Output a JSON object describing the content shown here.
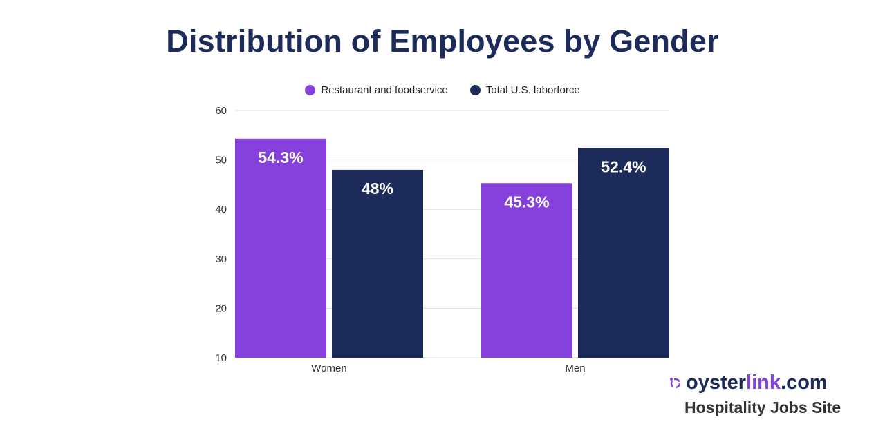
{
  "colors": {
    "title": "#1c2b5a",
    "series_a": "#8640db",
    "series_b": "#1c2b5a",
    "grid": "#e0e0e0",
    "brand_accent": "#8640db"
  },
  "chart_data": {
    "type": "bar",
    "title": "Distribution of Employees by Gender",
    "categories": [
      "Women",
      "Men"
    ],
    "series": [
      {
        "name": "Restaurant and foodservice",
        "values": [
          54.3,
          45.3
        ],
        "labels": [
          "54.3%",
          "45.3%"
        ],
        "color": "#8640db"
      },
      {
        "name": "Total U.S. laborforce",
        "values": [
          48,
          52.4
        ],
        "labels": [
          "48%",
          "52.4%"
        ],
        "color": "#1c2b5a"
      }
    ],
    "ylim": [
      10,
      60
    ],
    "yticks": [
      10,
      20,
      30,
      40,
      50,
      60
    ],
    "grid": true,
    "legend": "top-center",
    "xlabel": "",
    "ylabel": ""
  },
  "brand": {
    "name_a": "oyster",
    "name_b": "link",
    "name_c": ".com",
    "tagline": "Hospitality Jobs Site"
  }
}
